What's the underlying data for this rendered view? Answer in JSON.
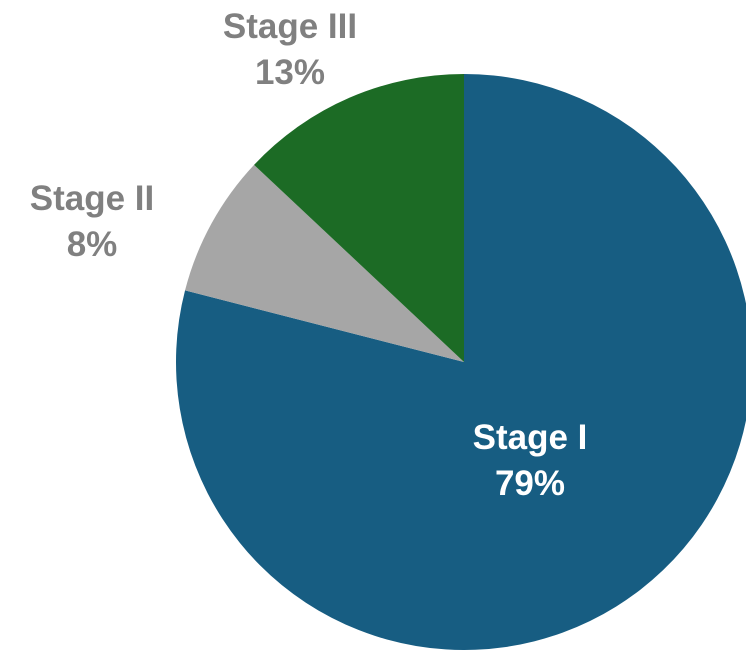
{
  "chart_data": {
    "type": "pie",
    "title": "",
    "slices": [
      {
        "label": "Stage I",
        "value": 79,
        "value_label": "79%",
        "color": "#175d82",
        "label_color": "#ffffff",
        "label_position": "inside"
      },
      {
        "label": "Stage II",
        "value": 8,
        "value_label": "8%",
        "color": "#a6a6a6",
        "label_color": "#808080",
        "label_position": "outside"
      },
      {
        "label": "Stage III",
        "value": 13,
        "value_label": "13%",
        "color": "#1c6b25",
        "label_color": "#808080",
        "label_position": "outside"
      }
    ],
    "start_angle": "12 o'clock",
    "direction": "clockwise",
    "legend": "none"
  }
}
